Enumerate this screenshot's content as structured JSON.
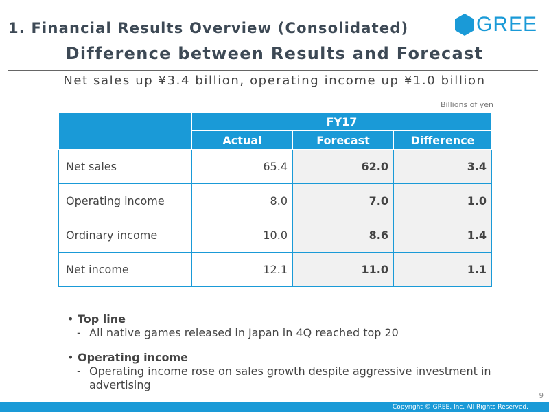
{
  "header": {
    "section_title": "1. Financial Results Overview (Consolidated)",
    "logo_text": "GREE",
    "main_title": "Difference between Results and Forecast",
    "subtitle": "Net sales up ¥3.4 billion, operating income up ¥1.0 billion",
    "unit_note": "Billions of yen"
  },
  "colors": {
    "brand": "#1a9ad7",
    "title": "#3d4955",
    "shaded_cell": "#f1f1f1"
  },
  "table": {
    "period": "FY17",
    "columns": [
      "Actual",
      "Forecast",
      "Difference"
    ],
    "rows": [
      {
        "label": "Net sales",
        "actual": "65.4",
        "forecast": "62.0",
        "difference": "3.4"
      },
      {
        "label": "Operating income",
        "actual": "8.0",
        "forecast": "7.0",
        "difference": "1.0"
      },
      {
        "label": "Ordinary income",
        "actual": "10.0",
        "forecast": "8.6",
        "difference": "1.4"
      },
      {
        "label": "Net income",
        "actual": "12.1",
        "forecast": "11.0",
        "difference": "1.1"
      }
    ]
  },
  "bullets": [
    {
      "heading": "Top line",
      "items": [
        "All native games released in Japan in 4Q reached top 20"
      ]
    },
    {
      "heading": "Operating income",
      "items": [
        "Operating income rose on sales growth despite aggressive investment in advertising"
      ]
    }
  ],
  "footer": {
    "page_number": "9",
    "copyright": "Copyright © GREE, Inc. All Rights Reserved."
  }
}
